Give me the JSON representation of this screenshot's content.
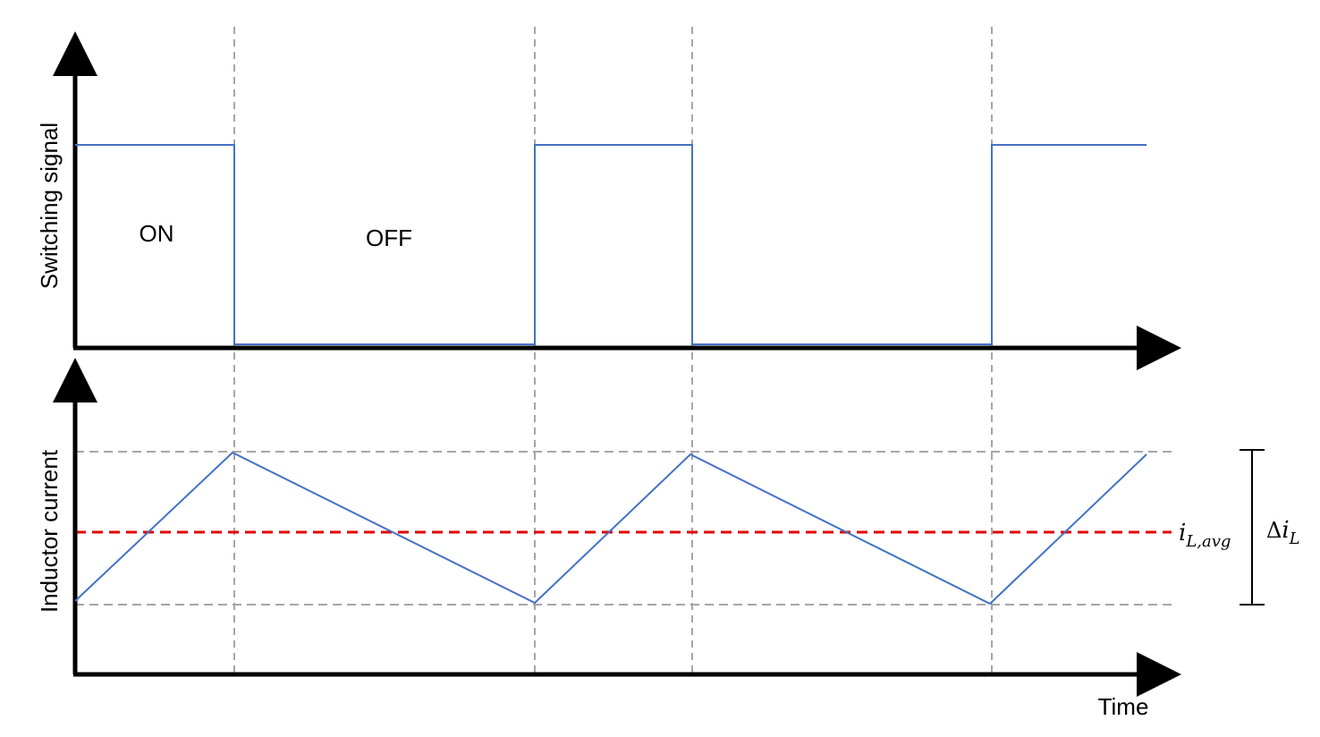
{
  "top_plot": {
    "ylabel": "Switching signal",
    "labels": {
      "on": "ON",
      "off": "OFF"
    }
  },
  "bottom_plot": {
    "ylabel": "Inductor current",
    "xlabel": "Time",
    "avg_label": {
      "base": "i",
      "sub": "L,avg"
    },
    "ripple_label": {
      "prefix": "Δ",
      "base": "i",
      "sub": "L"
    }
  },
  "colors": {
    "signal": "#4472c4",
    "average": "#e00000",
    "guides": "#a6a6a6",
    "axes": "#000000"
  }
}
